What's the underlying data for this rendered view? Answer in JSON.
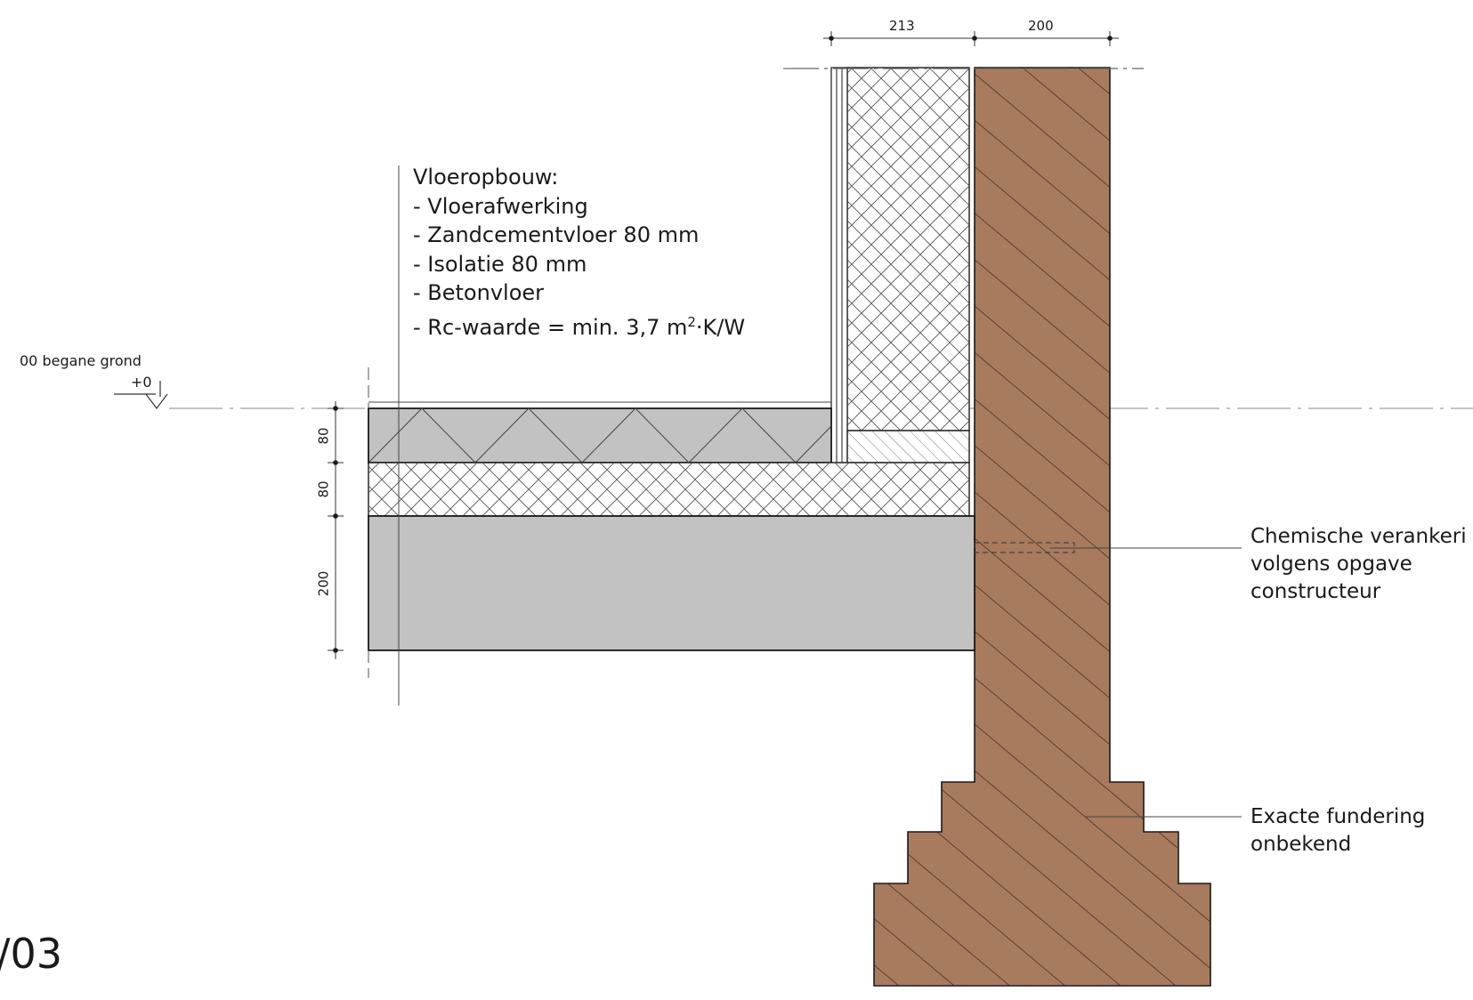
{
  "sheet": {
    "number": "/03"
  },
  "level": {
    "name": "00 begane grond",
    "elevation": "+0"
  },
  "floor_note": {
    "title": "Vloeropbouw:",
    "items": [
      "- Vloerafwerking",
      "- Zandcementvloer 80 mm",
      "- Isolatie 80 mm",
      "- Betonvloer"
    ],
    "rc_prefix": "- Rc-waarde = min. 3,7 m",
    "rc_sup": "2",
    "rc_suffix": "·K/W"
  },
  "dimensions": {
    "top": [
      "213",
      "200"
    ],
    "vertical": [
      "80",
      "80",
      "200"
    ]
  },
  "callouts": {
    "anchor": [
      "Chemische verankeri",
      "volgens opgave",
      "constructeur"
    ],
    "foundation": [
      "Exacte fundering",
      "onbekend"
    ]
  },
  "colors": {
    "masonry": "#a87a5e",
    "concrete": "#c2c2c2",
    "screed": "#c2c2c2",
    "insulation": "#ffffff",
    "line": "#1a1a1a"
  }
}
